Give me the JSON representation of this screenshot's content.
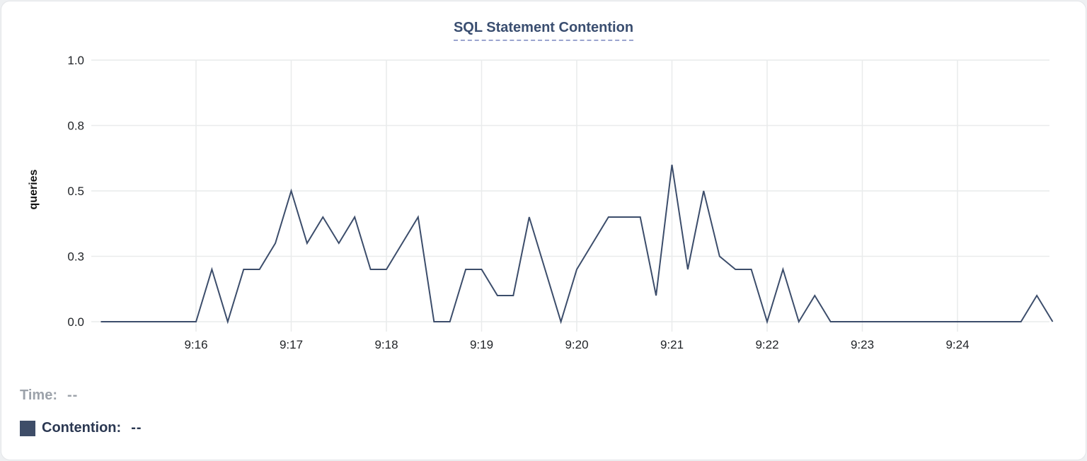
{
  "chart_data": {
    "type": "line",
    "title": "SQL Statement Contention",
    "xlabel": "",
    "ylabel": "queries",
    "ylim": [
      0,
      1.0
    ],
    "grid": true,
    "legend_position": "bottom-left",
    "y_ticks": [
      {
        "value": 0,
        "label": "0.0"
      },
      {
        "value": 0.25,
        "label": "0.3"
      },
      {
        "value": 0.5,
        "label": "0.5"
      },
      {
        "value": 0.75,
        "label": "0.8"
      },
      {
        "value": 1.0,
        "label": "1.0"
      }
    ],
    "x_ticks": [
      "9:16",
      "9:17",
      "9:18",
      "9:19",
      "9:20",
      "9:21",
      "9:22",
      "9:23",
      "9:24"
    ],
    "x_range": [
      "9:15:00",
      "9:25:00"
    ],
    "series": [
      {
        "name": "Contention",
        "color": "#3c4d6b",
        "unit": "queries",
        "points": [
          [
            "9:15:00",
            0
          ],
          [
            "9:15:10",
            0
          ],
          [
            "9:15:20",
            0
          ],
          [
            "9:15:30",
            0
          ],
          [
            "9:15:40",
            0
          ],
          [
            "9:15:50",
            0
          ],
          [
            "9:16:00",
            0
          ],
          [
            "9:16:10",
            0.2
          ],
          [
            "9:16:20",
            0
          ],
          [
            "9:16:30",
            0.2
          ],
          [
            "9:16:40",
            0.2
          ],
          [
            "9:16:50",
            0.3
          ],
          [
            "9:17:00",
            0.5
          ],
          [
            "9:17:10",
            0.3
          ],
          [
            "9:17:20",
            0.4
          ],
          [
            "9:17:30",
            0.3
          ],
          [
            "9:17:40",
            0.4
          ],
          [
            "9:17:50",
            0.2
          ],
          [
            "9:18:00",
            0.2
          ],
          [
            "9:18:10",
            0.3
          ],
          [
            "9:18:20",
            0.4
          ],
          [
            "9:18:30",
            0
          ],
          [
            "9:18:40",
            0
          ],
          [
            "9:18:50",
            0.2
          ],
          [
            "9:19:00",
            0.2
          ],
          [
            "9:19:10",
            0.1
          ],
          [
            "9:19:20",
            0.1
          ],
          [
            "9:19:30",
            0.4
          ],
          [
            "9:19:40",
            0.2
          ],
          [
            "9:19:50",
            0
          ],
          [
            "9:20:00",
            0.2
          ],
          [
            "9:20:10",
            0.3
          ],
          [
            "9:20:20",
            0.4
          ],
          [
            "9:20:30",
            0.4
          ],
          [
            "9:20:40",
            0.4
          ],
          [
            "9:20:50",
            0.1
          ],
          [
            "9:21:00",
            0.6
          ],
          [
            "9:21:10",
            0.2
          ],
          [
            "9:21:20",
            0.5
          ],
          [
            "9:21:30",
            0.25
          ],
          [
            "9:21:40",
            0.2
          ],
          [
            "9:21:50",
            0.2
          ],
          [
            "9:22:00",
            0
          ],
          [
            "9:22:10",
            0.2
          ],
          [
            "9:22:20",
            0
          ],
          [
            "9:22:30",
            0.1
          ],
          [
            "9:22:40",
            0
          ],
          [
            "9:22:50",
            0
          ],
          [
            "9:23:00",
            0
          ],
          [
            "9:23:10",
            0
          ],
          [
            "9:23:20",
            0
          ],
          [
            "9:23:30",
            0
          ],
          [
            "9:23:40",
            0
          ],
          [
            "9:23:50",
            0
          ],
          [
            "9:24:00",
            0
          ],
          [
            "9:24:10",
            0
          ],
          [
            "9:24:20",
            0
          ],
          [
            "9:24:30",
            0
          ],
          [
            "9:24:40",
            0
          ],
          [
            "9:24:50",
            0.1
          ],
          [
            "9:25:00",
            0
          ]
        ]
      }
    ]
  },
  "readout": {
    "time_label": "Time:",
    "time_value": "--",
    "contention_label": "Contention:",
    "contention_value": "--",
    "swatch_color": "#3e4d68"
  },
  "colors": {
    "accent": "#3c4d6b",
    "title": "#3a4e70",
    "gridline": "#e9ebec",
    "muted_text": "#9ca2aa"
  }
}
